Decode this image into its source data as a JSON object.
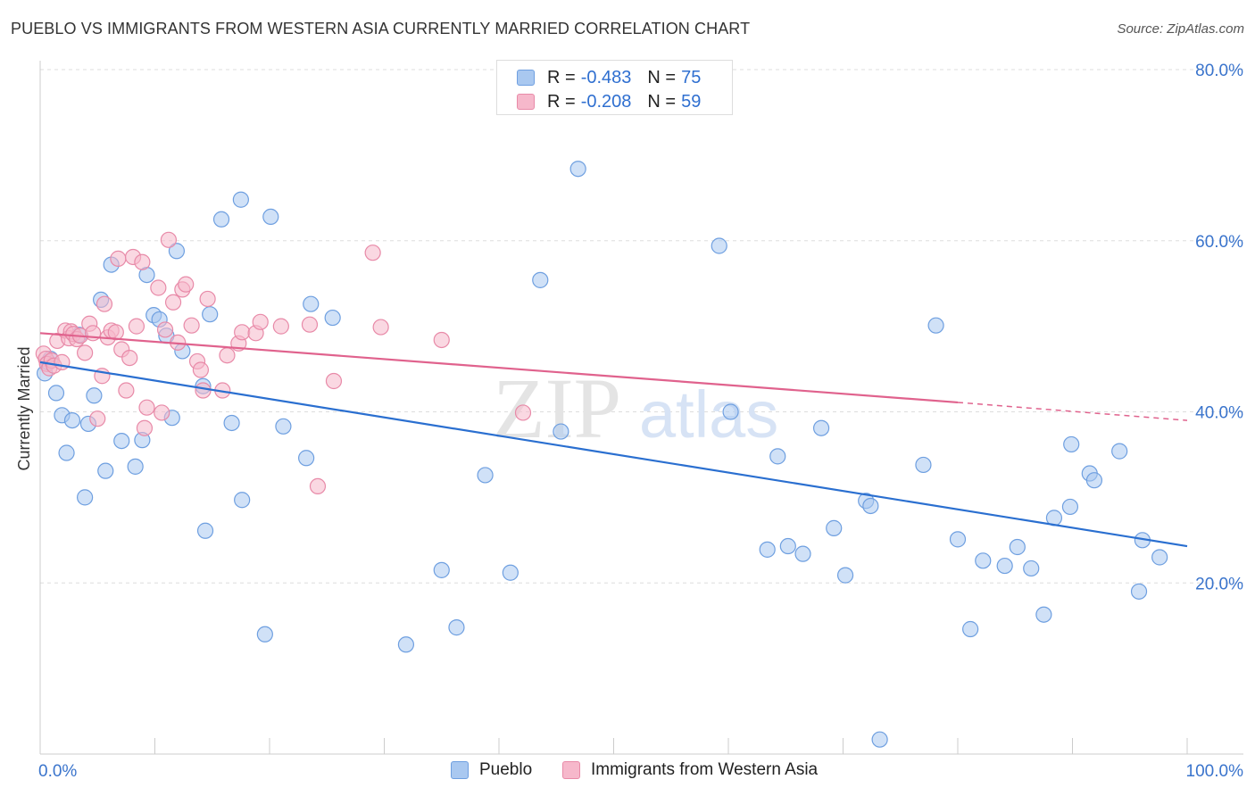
{
  "header": {
    "title": "PUEBLO VS IMMIGRANTS FROM WESTERN ASIA CURRENTLY MARRIED CORRELATION CHART",
    "source": "Source: ZipAtlas.com"
  },
  "watermark": {
    "part1": "ZIP",
    "part2": "atlas"
  },
  "legend_top": [
    {
      "r_label": "R = ",
      "r_value": "-0.483",
      "n_label": "N = ",
      "n_value": "75"
    },
    {
      "r_label": "R = ",
      "r_value": "-0.208",
      "n_label": "N = ",
      "n_value": "59"
    }
  ],
  "legend_bottom": [
    {
      "label": "Pueblo"
    },
    {
      "label": "Immigrants from Western Asia"
    }
  ],
  "colors": {
    "blue_fill": "#a9c8f0",
    "blue_stroke": "#6e9fe0",
    "blue_line": "#2a6fd0",
    "pink_fill": "#f6b8cb",
    "pink_stroke": "#e88aa8",
    "pink_line": "#e0628d",
    "axis_text": "#3a74cc",
    "grid": "#dddddd"
  },
  "chart_data": {
    "type": "scatter",
    "ylabel": "Currently Married",
    "xlabel": "",
    "xlim": [
      0,
      100
    ],
    "ylim": [
      0,
      80
    ],
    "x_tick_labels": [
      "0.0%",
      "100.0%"
    ],
    "y_ticks": [
      20,
      40,
      60,
      80
    ],
    "y_tick_labels": [
      "20.0%",
      "40.0%",
      "60.0%",
      "80.0%"
    ],
    "grid": "horizontal dashed",
    "series": [
      {
        "name": "Pueblo",
        "trend": {
          "x": [
            0,
            100
          ],
          "y": [
            45.8,
            24.3
          ]
        },
        "points": [
          [
            0.4,
            44.5
          ],
          [
            0.7,
            45.8
          ],
          [
            0.9,
            46.2
          ],
          [
            1.4,
            42.2
          ],
          [
            1.9,
            39.6
          ],
          [
            2.3,
            35.2
          ],
          [
            2.8,
            39.0
          ],
          [
            3.4,
            49.0
          ],
          [
            3.9,
            30.0
          ],
          [
            4.2,
            38.6
          ],
          [
            4.7,
            41.9
          ],
          [
            5.3,
            53.1
          ],
          [
            5.7,
            33.1
          ],
          [
            6.2,
            57.2
          ],
          [
            7.1,
            36.6
          ],
          [
            8.3,
            33.6
          ],
          [
            8.9,
            36.7
          ],
          [
            9.3,
            56.0
          ],
          [
            9.9,
            51.3
          ],
          [
            10.4,
            50.8
          ],
          [
            11.0,
            48.9
          ],
          [
            11.5,
            39.3
          ],
          [
            11.9,
            58.8
          ],
          [
            12.4,
            47.1
          ],
          [
            14.2,
            43.0
          ],
          [
            14.4,
            26.1
          ],
          [
            14.8,
            51.4
          ],
          [
            15.8,
            62.5
          ],
          [
            16.7,
            38.7
          ],
          [
            17.5,
            64.8
          ],
          [
            17.6,
            29.7
          ],
          [
            19.6,
            14.0
          ],
          [
            20.1,
            62.8
          ],
          [
            21.2,
            38.3
          ],
          [
            23.2,
            34.6
          ],
          [
            23.6,
            52.6
          ],
          [
            25.5,
            51.0
          ],
          [
            31.9,
            12.8
          ],
          [
            35.0,
            21.5
          ],
          [
            36.3,
            14.8
          ],
          [
            38.8,
            32.6
          ],
          [
            41.0,
            21.2
          ],
          [
            43.6,
            55.4
          ],
          [
            45.4,
            37.7
          ],
          [
            46.9,
            68.4
          ],
          [
            59.2,
            59.4
          ],
          [
            60.2,
            40.0
          ],
          [
            63.4,
            23.9
          ],
          [
            64.3,
            34.8
          ],
          [
            65.2,
            24.3
          ],
          [
            66.5,
            23.4
          ],
          [
            68.1,
            38.1
          ],
          [
            69.2,
            26.4
          ],
          [
            70.2,
            20.9
          ],
          [
            72.0,
            29.6
          ],
          [
            72.4,
            29.0
          ],
          [
            73.2,
            1.7
          ],
          [
            77.0,
            33.8
          ],
          [
            78.1,
            50.1
          ],
          [
            80.0,
            25.1
          ],
          [
            81.1,
            14.6
          ],
          [
            82.2,
            22.6
          ],
          [
            84.1,
            22.0
          ],
          [
            85.2,
            24.2
          ],
          [
            86.4,
            21.7
          ],
          [
            87.5,
            16.3
          ],
          [
            88.4,
            27.6
          ],
          [
            89.8,
            28.9
          ],
          [
            89.9,
            36.2
          ],
          [
            91.5,
            32.8
          ],
          [
            91.9,
            32.0
          ],
          [
            94.1,
            35.4
          ],
          [
            95.8,
            19.0
          ],
          [
            96.1,
            25.0
          ],
          [
            97.6,
            23.0
          ]
        ]
      },
      {
        "name": "Immigrants from Western Asia",
        "trend": {
          "x": [
            0,
            80
          ],
          "y": [
            49.2,
            41.1
          ]
        },
        "trend_dashed": {
          "x": [
            80,
            100
          ],
          "y": [
            41.1,
            39.0
          ]
        },
        "points": [
          [
            0.3,
            46.8
          ],
          [
            0.5,
            46.2
          ],
          [
            0.6,
            45.6
          ],
          [
            0.8,
            45.1
          ],
          [
            1.0,
            46.0
          ],
          [
            1.2,
            45.4
          ],
          [
            1.5,
            48.3
          ],
          [
            1.9,
            45.8
          ],
          [
            2.2,
            49.5
          ],
          [
            2.5,
            48.6
          ],
          [
            2.7,
            49.4
          ],
          [
            2.9,
            49.1
          ],
          [
            3.2,
            48.5
          ],
          [
            3.5,
            48.9
          ],
          [
            3.9,
            46.9
          ],
          [
            4.3,
            50.3
          ],
          [
            4.6,
            49.2
          ],
          [
            5.0,
            39.2
          ],
          [
            5.4,
            44.2
          ],
          [
            5.6,
            52.6
          ],
          [
            5.9,
            48.7
          ],
          [
            6.2,
            49.5
          ],
          [
            6.6,
            49.3
          ],
          [
            6.8,
            57.9
          ],
          [
            7.1,
            47.3
          ],
          [
            7.5,
            42.5
          ],
          [
            7.8,
            46.3
          ],
          [
            8.1,
            58.1
          ],
          [
            8.4,
            50.0
          ],
          [
            8.9,
            57.5
          ],
          [
            9.1,
            38.1
          ],
          [
            9.3,
            40.5
          ],
          [
            10.3,
            54.5
          ],
          [
            10.6,
            39.9
          ],
          [
            10.9,
            49.6
          ],
          [
            11.2,
            60.1
          ],
          [
            11.6,
            52.8
          ],
          [
            12.0,
            48.1
          ],
          [
            12.4,
            54.3
          ],
          [
            12.7,
            54.9
          ],
          [
            13.2,
            50.1
          ],
          [
            13.7,
            45.9
          ],
          [
            14.0,
            44.9
          ],
          [
            14.2,
            42.5
          ],
          [
            14.6,
            53.2
          ],
          [
            15.9,
            42.5
          ],
          [
            16.3,
            46.6
          ],
          [
            17.3,
            48.0
          ],
          [
            17.6,
            49.3
          ],
          [
            18.8,
            49.2
          ],
          [
            19.2,
            50.5
          ],
          [
            21.0,
            50.0
          ],
          [
            23.5,
            50.2
          ],
          [
            24.2,
            31.3
          ],
          [
            25.6,
            43.6
          ],
          [
            29.0,
            58.6
          ],
          [
            29.7,
            49.9
          ],
          [
            35.0,
            48.4
          ],
          [
            42.1,
            39.9
          ]
        ]
      }
    ]
  }
}
